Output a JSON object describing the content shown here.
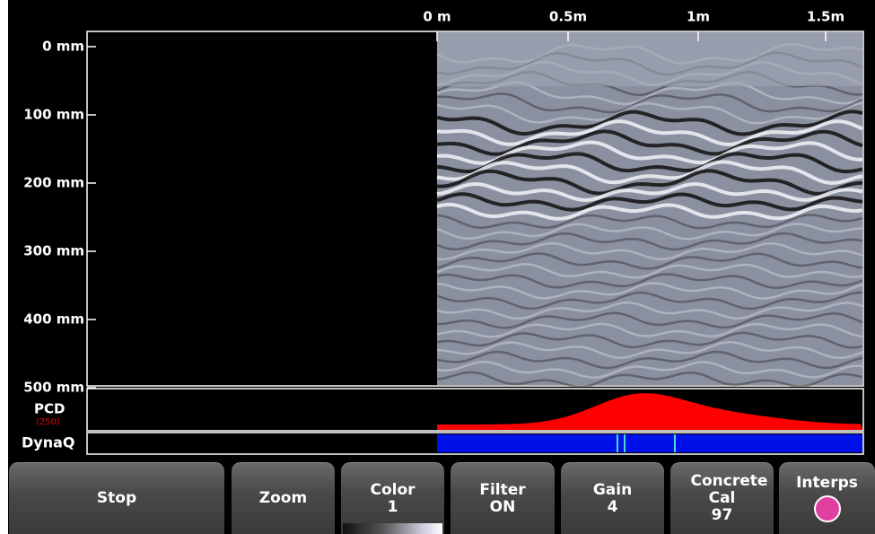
{
  "top_axis": {
    "labels": [
      "0 m",
      "0.5m",
      "1m",
      "1.5m"
    ]
  },
  "depth_axis": {
    "labels": [
      "0 mm",
      "100 mm",
      "200 mm",
      "300 mm",
      "400 mm",
      "500 mm"
    ]
  },
  "panels": {
    "pcd": {
      "label": "PCD",
      "sublabel": "(250)"
    },
    "dynaq": {
      "label": "DynaQ"
    }
  },
  "buttons": [
    {
      "label": "Stop"
    },
    {
      "label": "Zoom"
    },
    {
      "label": "Color",
      "value": "1"
    },
    {
      "label": "Filter",
      "value": "ON"
    },
    {
      "label": "Gain",
      "value": "4"
    },
    {
      "label": "Concrete Cal",
      "value": "97"
    },
    {
      "label": "Interps"
    }
  ]
}
